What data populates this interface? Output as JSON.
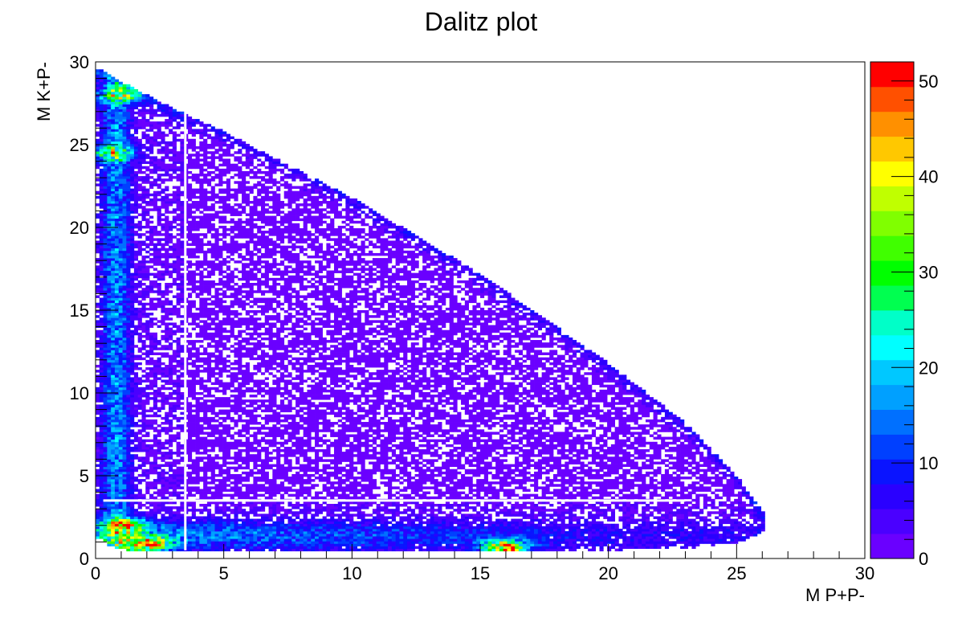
{
  "chart_data": {
    "type": "heatmap",
    "title": "Dalitz plot",
    "xlabel": "M P+P-",
    "ylabel": "M K+P-",
    "xlim": [
      0,
      30
    ],
    "ylim": [
      0,
      30
    ],
    "x_ticks": [
      0,
      5,
      10,
      15,
      20,
      25,
      30
    ],
    "y_ticks": [
      0,
      5,
      10,
      15,
      20,
      25,
      30
    ],
    "grid": false,
    "colorbar": {
      "range": [
        0,
        52
      ],
      "ticks": [
        0,
        10,
        20,
        30,
        40,
        50
      ],
      "levels": 20,
      "palette": [
        "#6a00ff",
        "#4a00ff",
        "#2a00ff",
        "#0a14ff",
        "#0040ff",
        "#0070ff",
        "#00a0ff",
        "#00c8ff",
        "#00ffff",
        "#00ffc8",
        "#00ff90",
        "#00ff50",
        "#00ff00",
        "#40ff00",
        "#80ff00",
        "#c0ff00",
        "#ffff00",
        "#ffc800",
        "#ff9000",
        "#ff5000",
        "#ff0000"
      ]
    },
    "bins": {
      "x": 200,
      "y": 200
    },
    "kinematic_boundary": {
      "x": [
        0.3,
        0.5,
        1,
        2,
        3,
        5,
        10,
        15,
        20,
        23,
        25,
        26
      ],
      "y_max": [
        29.6,
        29.2,
        28.8,
        28.0,
        27.2,
        25.8,
        21.8,
        17.2,
        11.8,
        8.2,
        5.0,
        2.8
      ],
      "y_min": [
        1.2,
        0.8,
        0.55,
        0.45,
        0.4,
        0.4,
        0.4,
        0.4,
        0.5,
        0.6,
        0.9,
        1.6
      ]
    },
    "hot_spots": [
      {
        "x": 1.0,
        "y": 28.0,
        "value": 30
      },
      {
        "x": 0.6,
        "y": 24.5,
        "value": 30
      },
      {
        "x": 2.0,
        "y": 0.9,
        "value": 50
      },
      {
        "x": 16.0,
        "y": 0.7,
        "value": 50
      },
      {
        "x": 1.2,
        "y": 2.0,
        "value": 30
      }
    ],
    "gap_lines": {
      "x": 3.5,
      "y": 3.5
    }
  }
}
